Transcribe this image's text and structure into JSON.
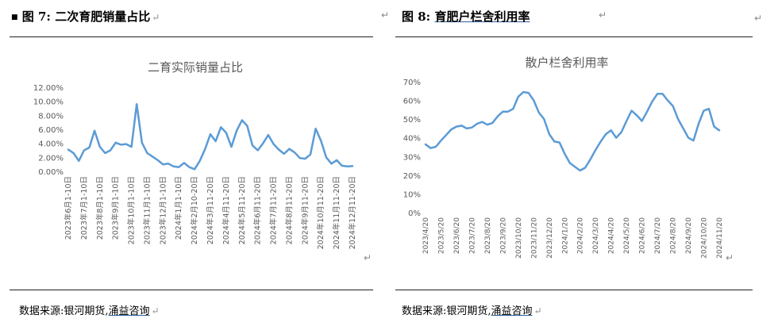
{
  "left": {
    "figure_title_prefix": "图 7:",
    "figure_title_text": "二次育肥销量占比",
    "source_prefix": "数据来源:银河期货,",
    "source_link": "涌益咨询"
  },
  "right": {
    "figure_title_prefix": "图 8:",
    "figure_title_text": "育肥户栏舍利用率",
    "source_prefix": "数据来源:银河期货,",
    "source_link": "涌益咨询"
  },
  "chart_data": [
    {
      "type": "line",
      "title": "二育实际销量占比",
      "xlabel": "",
      "ylabel": "",
      "ylim": [
        0,
        12
      ],
      "y_ticks": [
        "12.00%",
        "10.00%",
        "8.00%",
        "6.00%",
        "4.00%",
        "2.00%",
        "0.00%"
      ],
      "x_ticks": [
        "2023年6月1-10日",
        "2023年7月1-10日",
        "2023年8月1-10日",
        "2023年9月1-10日",
        "2023年10月1-10日",
        "2023年11月1-10日",
        "2023年12月1-10日",
        "2024年1月1-10日",
        "2024年2月10-20日",
        "2024年3月11-20日",
        "2024年4月11-20日",
        "2024年5月11-20日",
        "2024年6月11-20日",
        "2024年7月11-20日",
        "2024年8月11-20日",
        "2024年9月11-20日",
        "2024年10月11-20日",
        "2024年11月11-20日",
        "2024年12月11-20日"
      ],
      "color": "#5b9bd5",
      "grid": false,
      "values": [
        3.1,
        2.6,
        1.5,
        3.0,
        3.4,
        5.8,
        3.5,
        2.6,
        3.0,
        4.1,
        3.8,
        3.9,
        3.5,
        9.6,
        4.1,
        2.6,
        2.1,
        1.6,
        1.0,
        1.1,
        0.7,
        0.6,
        1.2,
        0.6,
        0.3,
        1.5,
        3.2,
        5.3,
        4.3,
        6.3,
        5.5,
        3.5,
        5.8,
        7.3,
        6.5,
        3.7,
        3.0,
        4.0,
        5.2,
        3.9,
        3.1,
        2.5,
        3.2,
        2.7,
        1.9,
        1.8,
        2.4,
        6.1,
        4.4,
        2.0,
        1.1,
        1.6,
        0.8,
        0.7,
        0.75
      ]
    },
    {
      "type": "line",
      "title": "散户栏舍利用率",
      "xlabel": "",
      "ylabel": "",
      "ylim": [
        0,
        70
      ],
      "y_ticks": [
        "70%",
        "60%",
        "50%",
        "40%",
        "30%",
        "20%",
        "10%",
        "0%"
      ],
      "x_ticks": [
        "2023/4/20",
        "2023/5/20",
        "2023/6/20",
        "2023/7/20",
        "2023/8/20",
        "2023/9/20",
        "2023/10/20",
        "2023/11/20",
        "2023/12/20",
        "2024/1/20",
        "2024/2/20",
        "2024/3/20",
        "2024/4/20",
        "2024/5/20",
        "2024/6/20",
        "2024/7/20",
        "2024/8/20",
        "2024/9/20",
        "2024/10/20",
        "2024/11/20"
      ],
      "color": "#5b9bd5",
      "grid": false,
      "values": [
        36.5,
        34.5,
        35.2,
        38.5,
        41.5,
        44.5,
        46,
        46.5,
        45,
        45.5,
        47.5,
        48.5,
        47,
        48,
        51.5,
        54,
        54,
        55.5,
        62,
        64.5,
        64,
        60,
        53.5,
        50,
        42,
        38,
        37.5,
        31.5,
        26.5,
        24.5,
        22.5,
        24,
        28.5,
        33.5,
        38,
        42,
        44,
        40,
        43,
        49,
        54.5,
        52,
        49,
        54,
        59.5,
        63.5,
        63.5,
        60,
        57,
        50,
        45,
        40,
        38.5,
        47.5,
        54.5,
        55.5,
        46,
        44
      ]
    }
  ]
}
